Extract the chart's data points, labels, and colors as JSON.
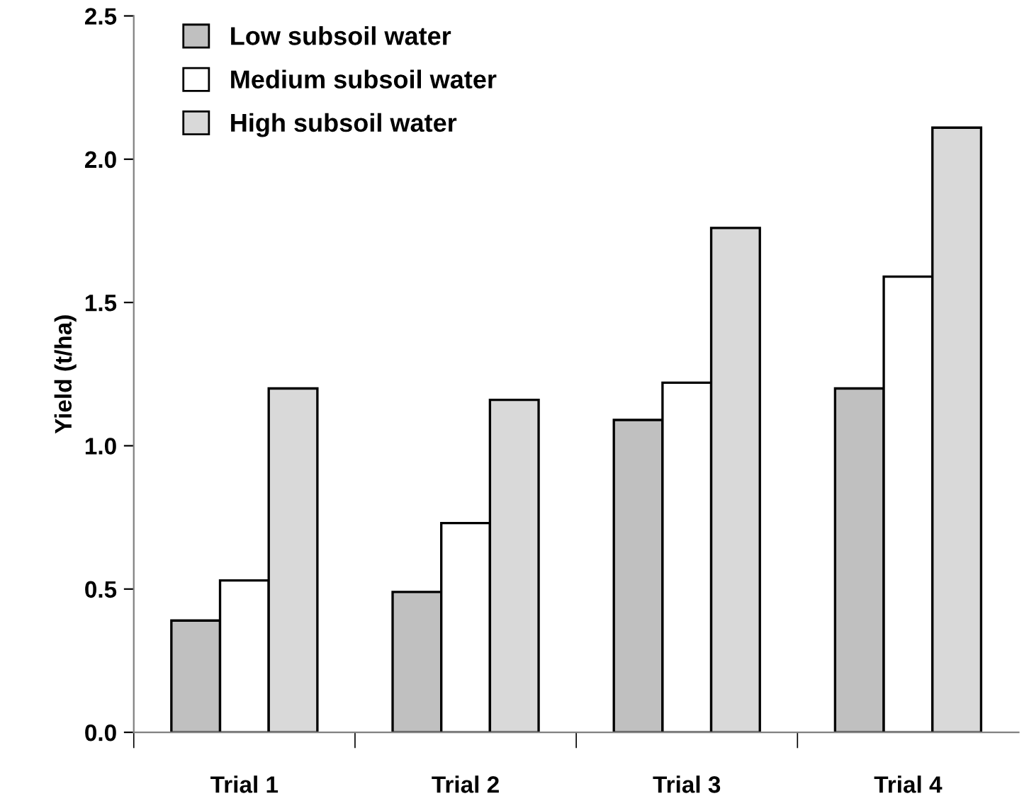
{
  "chart_data": {
    "type": "bar",
    "ylabel": "Yield (t/ha)",
    "categories": [
      "Trial 1",
      "Trial 2",
      "Trial 3",
      "Trial 4"
    ],
    "series": [
      {
        "name": "Low subsoil water",
        "color": "#c0c0c0",
        "values": [
          0.39,
          0.49,
          1.09,
          1.2
        ]
      },
      {
        "name": "Medium subsoil water",
        "color": "#ffffff",
        "values": [
          0.53,
          0.73,
          1.22,
          1.59
        ]
      },
      {
        "name": "High subsoil water",
        "color": "#d9d9d9",
        "values": [
          1.2,
          1.16,
          1.76,
          2.11
        ]
      }
    ],
    "ylim": [
      0,
      2.5
    ],
    "yticks": [
      {
        "value": 0,
        "label": "0.0"
      },
      {
        "value": 0.5,
        "label": "0.5"
      },
      {
        "value": 1,
        "label": "1.0"
      },
      {
        "value": 1.5,
        "label": "1.5"
      },
      {
        "value": 2,
        "label": "2.0"
      },
      {
        "value": 2.5,
        "label": "2.5"
      }
    ],
    "grid": false,
    "legend": "top left"
  }
}
